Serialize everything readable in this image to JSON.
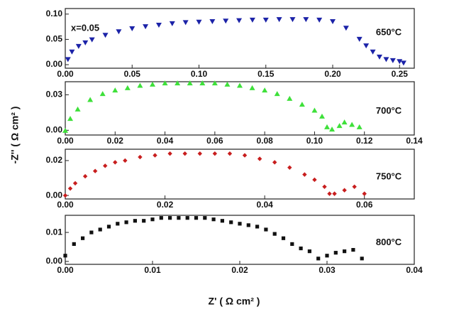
{
  "ylabel": "-Z'' ( Ω cm² )",
  "xlabel": "Z' ( Ω cm² )",
  "chart_data": [
    {
      "type": "scatter",
      "annotations": [
        "x=0.05"
      ],
      "x": [
        0.002,
        0.005,
        0.01,
        0.015,
        0.02,
        0.03,
        0.04,
        0.05,
        0.06,
        0.07,
        0.08,
        0.09,
        0.1,
        0.11,
        0.12,
        0.13,
        0.14,
        0.15,
        0.16,
        0.17,
        0.18,
        0.19,
        0.2,
        0.21,
        0.22,
        0.225,
        0.23,
        0.235,
        0.24,
        0.245,
        0.25,
        0.253
      ],
      "series": [
        {
          "name": "650°C",
          "color": "#1c23a8",
          "marker": "triangle-down",
          "values": [
            0.01,
            0.025,
            0.036,
            0.043,
            0.049,
            0.058,
            0.065,
            0.071,
            0.075,
            0.078,
            0.081,
            0.083,
            0.084,
            0.085,
            0.086,
            0.087,
            0.088,
            0.088,
            0.089,
            0.089,
            0.089,
            0.088,
            0.085,
            0.072,
            0.05,
            0.037,
            0.025,
            0.015,
            0.01,
            0.008,
            0.006,
            0.003
          ]
        }
      ],
      "xlim": [
        0,
        0.261
      ],
      "ylim": [
        -0.007,
        0.111
      ],
      "xticks": [
        {
          "value": 0,
          "label": "0.00"
        },
        {
          "value": 0.05,
          "label": "0.05"
        },
        {
          "value": 0.1,
          "label": "0.10"
        },
        {
          "value": 0.15,
          "label": "0.15"
        },
        {
          "value": 0.2,
          "label": "0.20"
        },
        {
          "value": 0.25,
          "label": "0.25"
        }
      ],
      "yticks": [
        {
          "value": 0,
          "label": "0.00"
        },
        {
          "value": 0.05,
          "label": "0.05"
        },
        {
          "value": 0.1,
          "label": "0.10"
        }
      ]
    },
    {
      "type": "scatter",
      "x": [
        0,
        0.002,
        0.005,
        0.01,
        0.015,
        0.02,
        0.025,
        0.03,
        0.035,
        0.04,
        0.045,
        0.05,
        0.055,
        0.06,
        0.065,
        0.07,
        0.075,
        0.08,
        0.085,
        0.09,
        0.095,
        0.1,
        0.103,
        0.105,
        0.107,
        0.11,
        0.112,
        0.115,
        0.118
      ],
      "series": [
        {
          "name": "700°C",
          "color": "#3ee03a",
          "marker": "triangle-up",
          "values": [
            0,
            0.01,
            0.018,
            0.026,
            0.031,
            0.034,
            0.036,
            0.038,
            0.039,
            0.04,
            0.04,
            0.04,
            0.04,
            0.04,
            0.039,
            0.038,
            0.036,
            0.034,
            0.031,
            0.027,
            0.022,
            0.017,
            0.012,
            0.003,
            0.001,
            0.004,
            0.007,
            0.005,
            0.003
          ]
        }
      ],
      "xlim": [
        0,
        0.14
      ],
      "ylim": [
        -0.004,
        0.041
      ],
      "xticks": [
        {
          "value": 0,
          "label": "0.00"
        },
        {
          "value": 0.02,
          "label": "0.02"
        },
        {
          "value": 0.04,
          "label": "0.04"
        },
        {
          "value": 0.06,
          "label": "0.06"
        },
        {
          "value": 0.08,
          "label": "0.08"
        },
        {
          "value": 0.1,
          "label": "0.10"
        },
        {
          "value": 0.12,
          "label": "0.12"
        },
        {
          "value": 0.14,
          "label": "0.14"
        }
      ],
      "yticks": [
        {
          "value": 0,
          "label": "0.00"
        },
        {
          "value": 0.03,
          "label": "0.03"
        }
      ]
    },
    {
      "type": "scatter",
      "x": [
        0,
        0.001,
        0.002,
        0.004,
        0.006,
        0.008,
        0.01,
        0.012,
        0.015,
        0.018,
        0.021,
        0.024,
        0.027,
        0.03,
        0.033,
        0.036,
        0.039,
        0.042,
        0.045,
        0.048,
        0.05,
        0.052,
        0.053,
        0.054,
        0.056,
        0.058,
        0.06
      ],
      "series": [
        {
          "name": "750°C",
          "color": "#c81e1e",
          "marker": "diamond",
          "values": [
            0,
            0.004,
            0.007,
            0.011,
            0.014,
            0.017,
            0.019,
            0.02,
            0.022,
            0.023,
            0.024,
            0.024,
            0.024,
            0.024,
            0.024,
            0.023,
            0.021,
            0.019,
            0.016,
            0.012,
            0.009,
            0.005,
            0.001,
            0.001,
            0.003,
            0.005,
            0.001
          ]
        }
      ],
      "xlim": [
        0,
        0.07
      ],
      "ylim": [
        -0.002,
        0.0265
      ],
      "xticks": [
        {
          "value": 0,
          "label": "0.00"
        },
        {
          "value": 0.02,
          "label": "0.02"
        },
        {
          "value": 0.04,
          "label": "0.04"
        },
        {
          "value": 0.06,
          "label": "0.06"
        }
      ],
      "yticks": [
        {
          "value": 0,
          "label": "0.00"
        },
        {
          "value": 0.02,
          "label": "0.02"
        }
      ]
    },
    {
      "type": "scatter",
      "x": [
        0,
        0.001,
        0.002,
        0.003,
        0.004,
        0.005,
        0.006,
        0.007,
        0.008,
        0.009,
        0.01,
        0.011,
        0.012,
        0.013,
        0.014,
        0.015,
        0.016,
        0.017,
        0.018,
        0.019,
        0.02,
        0.021,
        0.022,
        0.023,
        0.024,
        0.025,
        0.026,
        0.027,
        0.028,
        0.029,
        0.03,
        0.031,
        0.032,
        0.033,
        0.034
      ],
      "series": [
        {
          "name": "800°C",
          "color": "#111111",
          "marker": "square",
          "values": [
            0.002,
            0.006,
            0.008,
            0.01,
            0.011,
            0.012,
            0.013,
            0.0135,
            0.014,
            0.014,
            0.0145,
            0.015,
            0.015,
            0.015,
            0.015,
            0.015,
            0.015,
            0.0145,
            0.014,
            0.0135,
            0.013,
            0.0125,
            0.012,
            0.011,
            0.0095,
            0.008,
            0.006,
            0.0045,
            0.0035,
            0.001,
            0.002,
            0.003,
            0.0035,
            0.004,
            0.001
          ]
        }
      ],
      "xlim": [
        0,
        0.04
      ],
      "ylim": [
        -0.001,
        0.0159
      ],
      "xticks": [
        {
          "value": 0,
          "label": "0.00"
        },
        {
          "value": 0.01,
          "label": "0.01"
        },
        {
          "value": 0.02,
          "label": "0.02"
        },
        {
          "value": 0.03,
          "label": "0.03"
        },
        {
          "value": 0.04,
          "label": "0.04"
        }
      ],
      "yticks": [
        {
          "value": 0,
          "label": "0.00"
        },
        {
          "value": 0.01,
          "label": "0.01"
        }
      ]
    }
  ]
}
